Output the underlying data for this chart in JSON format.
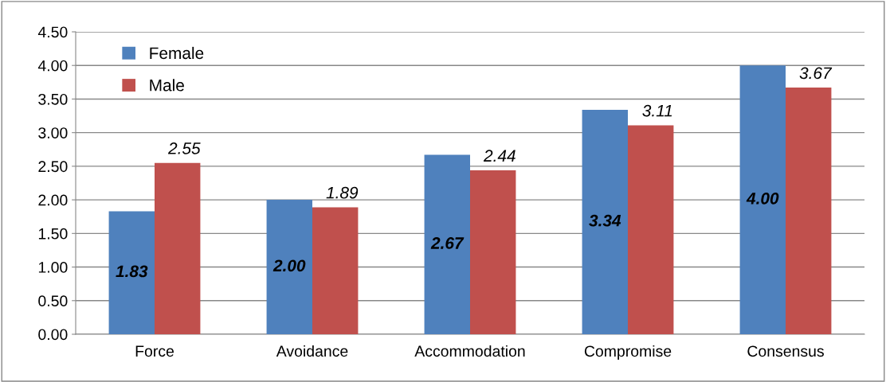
{
  "chart_data": {
    "type": "bar",
    "categories": [
      "Force",
      "Avoidance",
      "Accommodation",
      "Compromise",
      "Consensus"
    ],
    "series": [
      {
        "name": "Female",
        "color": "#4f81bd",
        "values": [
          1.83,
          2.0,
          2.67,
          3.34,
          4.0
        ],
        "value_labels": [
          "1.83",
          "2.00",
          "2.67",
          "3.34",
          "4.00"
        ]
      },
      {
        "name": "Male",
        "color": "#c0504d",
        "values": [
          2.55,
          1.89,
          2.44,
          3.11,
          3.67
        ],
        "value_labels": [
          "2.55",
          "1.89",
          "2.44",
          "3.11",
          "3.67"
        ]
      }
    ],
    "ylim": [
      0,
      4.5
    ],
    "yticks": [
      {
        "value": 0,
        "label": "0.00"
      },
      {
        "value": 0.5,
        "label": "0.50"
      },
      {
        "value": 1,
        "label": "1.00"
      },
      {
        "value": 1.5,
        "label": "1.50"
      },
      {
        "value": 2,
        "label": "2.00"
      },
      {
        "value": 2.5,
        "label": "2.50"
      },
      {
        "value": 3,
        "label": "3.00"
      },
      {
        "value": 3.5,
        "label": "3.50"
      },
      {
        "value": 4,
        "label": "4.00"
      },
      {
        "value": 4.5,
        "label": "4.50"
      }
    ],
    "grid": "y",
    "legend": "top left"
  }
}
